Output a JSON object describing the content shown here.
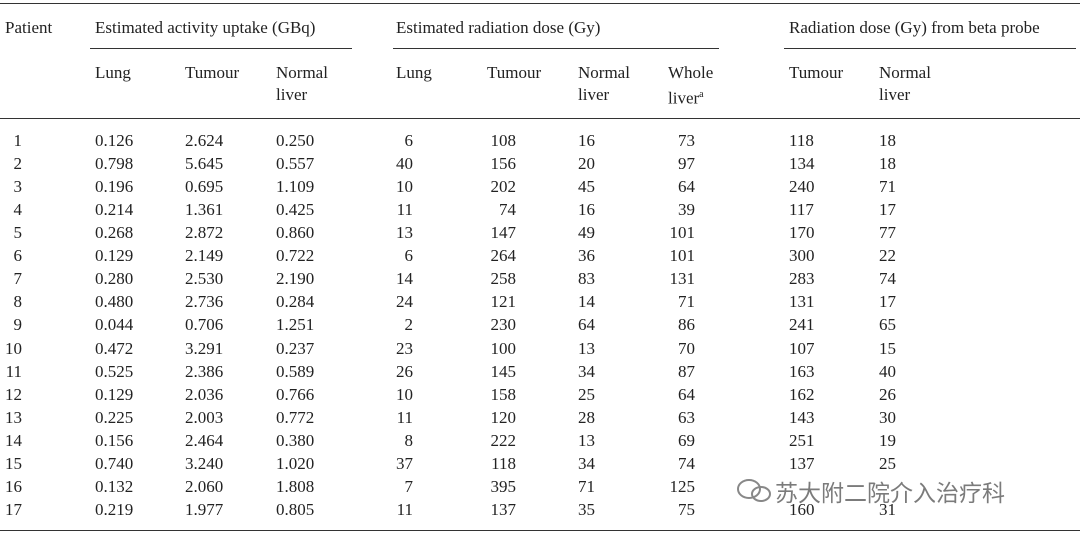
{
  "table": {
    "header": {
      "patient": "Patient",
      "groups": [
        "Estimated activity uptake (GBq)",
        "Estimated radiation dose (Gy)",
        "Radiation dose (Gy) from beta probe"
      ],
      "columns": [
        "Lung",
        "Tumour",
        "Normal liver",
        "Lung",
        "Tumour",
        "Normal liver",
        "Whole liver",
        "Tumour",
        "Normal liver"
      ],
      "footnote_marker": "a"
    },
    "rows": [
      [
        "1",
        "0.126",
        "2.624",
        "0.250",
        "6",
        "108",
        "16",
        "73",
        "118",
        "18"
      ],
      [
        "2",
        "0.798",
        "5.645",
        "0.557",
        "40",
        "156",
        "20",
        "97",
        "134",
        "18"
      ],
      [
        "3",
        "0.196",
        "0.695",
        "1.109",
        "10",
        "202",
        "45",
        "64",
        "240",
        "71"
      ],
      [
        "4",
        "0.214",
        "1.361",
        "0.425",
        "11",
        "74",
        "16",
        "39",
        "117",
        "17"
      ],
      [
        "5",
        "0.268",
        "2.872",
        "0.860",
        "13",
        "147",
        "49",
        "101",
        "170",
        "77"
      ],
      [
        "6",
        "0.129",
        "2.149",
        "0.722",
        "6",
        "264",
        "36",
        "101",
        "300",
        "22"
      ],
      [
        "7",
        "0.280",
        "2.530",
        "2.190",
        "14",
        "258",
        "83",
        "131",
        "283",
        "74"
      ],
      [
        "8",
        "0.480",
        "2.736",
        "0.284",
        "24",
        "121",
        "14",
        "71",
        "131",
        "17"
      ],
      [
        "9",
        "0.044",
        "0.706",
        "1.251",
        "2",
        "230",
        "64",
        "86",
        "241",
        "65"
      ],
      [
        "10",
        "0.472",
        "3.291",
        "0.237",
        "23",
        "100",
        "13",
        "70",
        "107",
        "15"
      ],
      [
        "11",
        "0.525",
        "2.386",
        "0.589",
        "26",
        "145",
        "34",
        "87",
        "163",
        "40"
      ],
      [
        "12",
        "0.129",
        "2.036",
        "0.766",
        "10",
        "158",
        "25",
        "64",
        "162",
        "26"
      ],
      [
        "13",
        "0.225",
        "2.003",
        "0.772",
        "11",
        "120",
        "28",
        "63",
        "143",
        "30"
      ],
      [
        "14",
        "0.156",
        "2.464",
        "0.380",
        "8",
        "222",
        "13",
        "69",
        "251",
        "19"
      ],
      [
        "15",
        "0.740",
        "3.240",
        "1.020",
        "37",
        "118",
        "34",
        "74",
        "137",
        "25"
      ],
      [
        "16",
        "0.132",
        "2.060",
        "1.808",
        "7",
        "395",
        "71",
        "125",
        null,
        null
      ],
      [
        "17",
        "0.219",
        "1.977",
        "0.805",
        "11",
        "137",
        "35",
        "75",
        "160",
        "31"
      ]
    ],
    "watermark": "苏大附二院介入治疗科"
  }
}
